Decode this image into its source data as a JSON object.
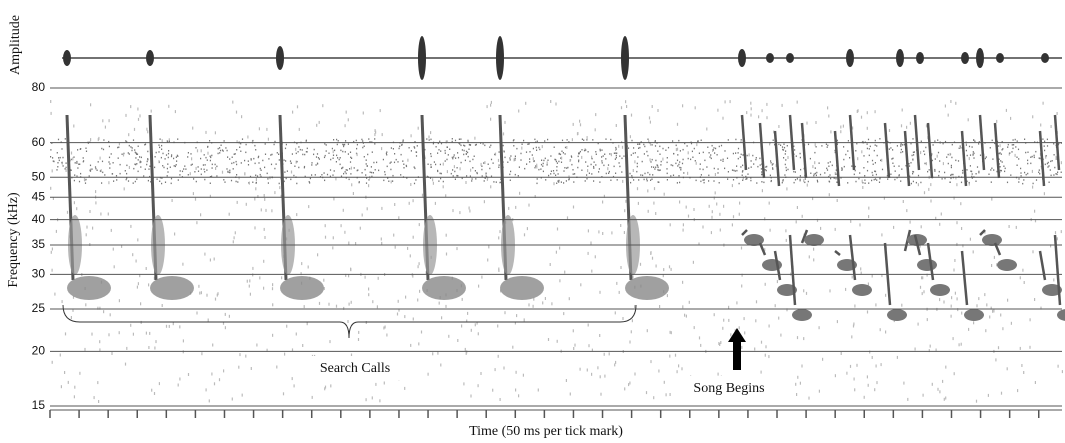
{
  "chart_data": {
    "type": "spectrogram",
    "amplitude_label": "Amplitude",
    "y_label": "Frequency (kHz)",
    "x_label": "Time (50 ms per tick mark)",
    "ylim": [
      15,
      80
    ],
    "yticks": [
      15,
      20,
      25,
      30,
      35,
      40,
      45,
      50,
      60,
      80
    ],
    "y_log": true,
    "grid": true,
    "xlim": [
      0,
      1740
    ],
    "xticks": [
      0,
      50,
      100,
      150,
      200,
      250,
      300,
      350,
      400,
      450,
      500,
      550,
      600,
      650,
      700,
      750,
      800,
      850,
      900,
      950,
      1000,
      1050,
      1100,
      1150,
      1200,
      1250,
      1300,
      1350,
      1400,
      1450,
      1500,
      1550,
      1600,
      1650,
      1700
    ],
    "annotations": [
      "Search Calls",
      "Song Begins"
    ]
  }
}
